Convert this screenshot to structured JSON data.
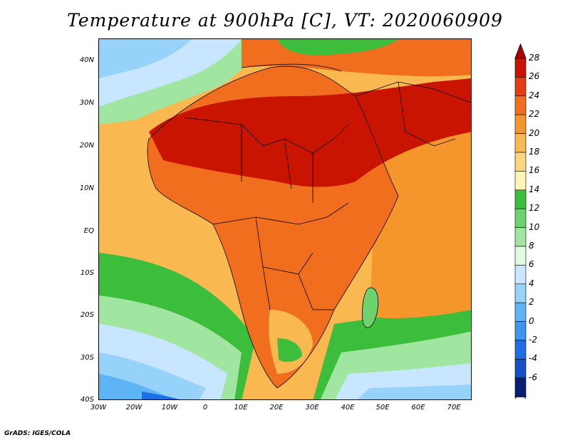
{
  "title": "Temperature at 900hPa [C], VT: 2020060909",
  "footer": "GrADS: IGES/COLA",
  "map": {
    "y_ticks": [
      "40N",
      "30N",
      "20N",
      "10N",
      "EQ",
      "10S",
      "20S",
      "30S",
      "40S"
    ],
    "x_ticks": [
      "30W",
      "20W",
      "10W",
      "0",
      "10E",
      "20E",
      "30E",
      "40E",
      "50E",
      "60E",
      "70E"
    ]
  },
  "colorbar": {
    "labels": [
      "28",
      "26",
      "24",
      "22",
      "20",
      "18",
      "16",
      "14",
      "12",
      "10",
      "8",
      "6",
      "4",
      "2",
      "0",
      "-2",
      "-4",
      "-6"
    ],
    "colors": [
      "#c81400",
      "#e63c14",
      "#f06e1e",
      "#f5962d",
      "#f9b950",
      "#fad77d",
      "#fdf5b4",
      "#3cbe3c",
      "#6ed26e",
      "#a0e6a0",
      "#e1fae1",
      "#c8e6ff",
      "#96d2fa",
      "#5fb4f5",
      "#3c96f0",
      "#1e6ee6",
      "#1450c8",
      "#0a1e78",
      "#0a0a50"
    ],
    "over_color": "#b40000",
    "under_color": "#e6e6fa"
  },
  "colors": {
    "ocean_north": "#8cc8f0",
    "ocean_mid": "#f9b950",
    "sahara": "#c81400",
    "land": "#f06e1e",
    "south_ocean": "#5fb4f5"
  }
}
